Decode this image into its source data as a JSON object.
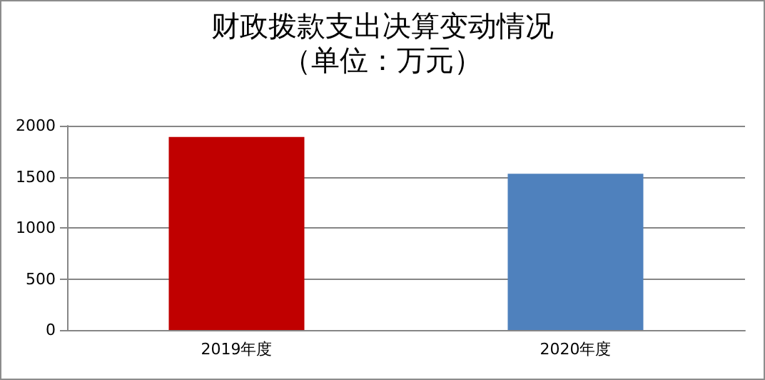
{
  "chart_data": {
    "type": "bar",
    "title": "财政拨款支出决算变动情况",
    "subtitle": "（单位：万元）",
    "categories": [
      "2019年度",
      "2020年度"
    ],
    "values": [
      1890,
      1530
    ],
    "colors": [
      "#c00000",
      "#4f81bd"
    ],
    "ylim": [
      0,
      2000
    ],
    "yticks": [
      0,
      500,
      1000,
      1500,
      2000
    ],
    "grid": "y"
  }
}
